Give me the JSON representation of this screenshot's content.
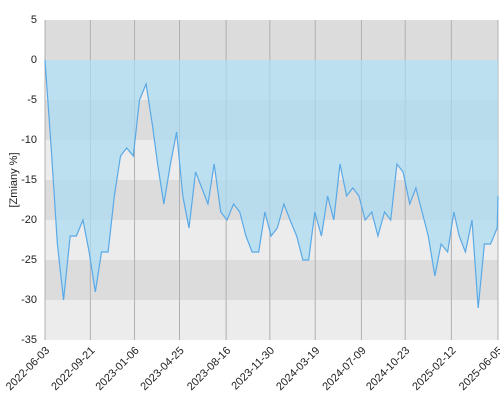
{
  "chart_data": {
    "type": "line",
    "y_label": "[Zmiany %]",
    "x": [
      "2022-06-03",
      "2022-06-18",
      "2022-07-03",
      "2022-07-18",
      "2022-08-03",
      "2022-08-18",
      "2022-09-03",
      "2022-09-18",
      "2022-10-03",
      "2022-10-18",
      "2022-11-03",
      "2022-11-18",
      "2022-12-03",
      "2022-12-18",
      "2023-01-03",
      "2023-01-18",
      "2023-02-03",
      "2023-02-18",
      "2023-03-03",
      "2023-03-18",
      "2023-04-03",
      "2023-04-18",
      "2023-05-03",
      "2023-05-18",
      "2023-06-03",
      "2023-06-18",
      "2023-07-03",
      "2023-07-18",
      "2023-08-03",
      "2023-08-18",
      "2023-09-03",
      "2023-09-18",
      "2023-10-03",
      "2023-10-18",
      "2023-11-03",
      "2023-11-18",
      "2023-12-03",
      "2023-12-18",
      "2024-01-03",
      "2024-01-18",
      "2024-02-03",
      "2024-02-18",
      "2024-03-03",
      "2024-03-18",
      "2024-04-03",
      "2024-04-18",
      "2024-05-03",
      "2024-05-18",
      "2024-06-03",
      "2024-06-18",
      "2024-07-03",
      "2024-07-18",
      "2024-08-03",
      "2024-08-18",
      "2024-09-03",
      "2024-09-18",
      "2024-10-03",
      "2024-10-18",
      "2024-11-03",
      "2024-11-18",
      "2024-12-03",
      "2024-12-18",
      "2025-01-03",
      "2025-01-18",
      "2025-02-03",
      "2025-02-18",
      "2025-03-03",
      "2025-03-18",
      "2025-04-03",
      "2025-04-18",
      "2025-05-03",
      "2025-05-18",
      "2025-06-03",
      "2025-06-05"
    ],
    "series": [
      {
        "color": "#5aa9e6",
        "values": [
          0,
          -11,
          -23,
          -30,
          -22,
          -22,
          -20,
          -24,
          -29,
          -24,
          -24,
          -17,
          -12,
          -11,
          -12,
          -5,
          -3,
          -8,
          -13,
          -18,
          -13,
          -9,
          -17,
          -21,
          -14,
          -16,
          -18,
          -13,
          -19,
          -20,
          -18,
          -19,
          -22,
          -24,
          -24,
          -19,
          -22,
          -21,
          -18,
          -20,
          -22,
          -25,
          -25,
          -19,
          -22,
          -17,
          -20,
          -13,
          -17,
          -16,
          -17,
          -20,
          -19,
          -22,
          -19,
          -20,
          -13,
          -14,
          -18,
          -16,
          -19,
          -22,
          -27,
          -23,
          -24,
          -19,
          -22,
          -24,
          -20,
          -31,
          -23,
          -23,
          -21,
          -17
        ]
      }
    ],
    "fill_color": "#a9dcf2",
    "xlim": [
      "2022-06-03",
      "2025-06-05"
    ],
    "xticks": [
      "2022-06-03",
      "2022-09-21",
      "2023-01-06",
      "2023-04-25",
      "2023-08-16",
      "2023-11-30",
      "2024-03-19",
      "2024-07-09",
      "2024-10-23",
      "2025-02-12",
      "2025-06-05"
    ],
    "ylim": [
      -35,
      5
    ],
    "yticks": [
      -35,
      -30,
      -25,
      -20,
      -15,
      -10,
      -5,
      0,
      5
    ],
    "grid": true
  }
}
